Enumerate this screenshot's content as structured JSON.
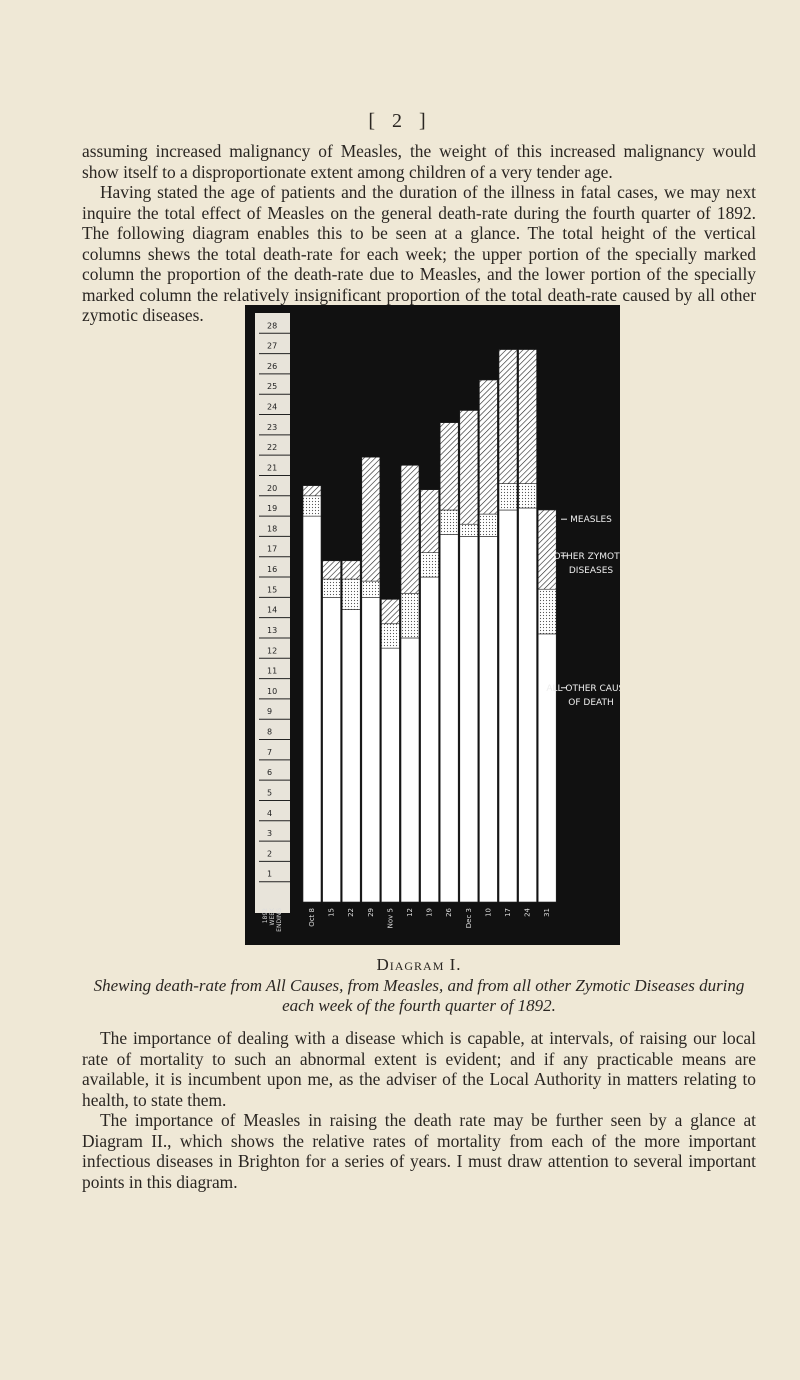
{
  "page_number": "[ 2 ]",
  "paragraphs_before": [
    "assuming increased malignancy of Measles, the weight of this increased malignancy would show itself to a disproportionate extent among children of a very tender age.",
    "Having stated the age of patients and the duration of the illness in fatal cases, we may next inquire the total effect of Measles on the general death-rate during the fourth quarter of 1892. The following diagram enables this to be seen at a glance. The total height of the vertical columns shews the total death-rate for each week; the upper portion of the specially marked column the proportion of the death-rate due to Measles, and the lower portion of the specially marked column the relatively insignificant proportion of the total death-rate caused by all other zymotic diseases."
  ],
  "chart_data": {
    "type": "stacked-bar",
    "x_title": [
      "1892",
      "WEEK",
      "ENDING"
    ],
    "categories": [
      "Oct 8",
      "15",
      "22",
      "29",
      "Nov 5",
      "12",
      "19",
      "26",
      "Dec 3",
      "10",
      "17",
      "24",
      "31"
    ],
    "series": [
      {
        "name": "MEASLES",
        "color": "#ffffff",
        "pattern": "hatch",
        "values": [
          0.5,
          0.9,
          0.9,
          6.1,
          1.2,
          6.3,
          3.1,
          4.3,
          5.6,
          6.6,
          6.6,
          6.6,
          3.9
        ]
      },
      {
        "name": "OTHER ZYMOTIC DISEASES",
        "color": "#ffffff",
        "pattern": "dots",
        "values": [
          1.0,
          0.9,
          1.5,
          0.8,
          1.2,
          2.2,
          1.2,
          1.2,
          0.6,
          1.1,
          1.3,
          1.2,
          2.2
        ]
      },
      {
        "name": "ALL OTHER CAUSES OF DEATH",
        "color": "#ffffff",
        "pattern": "none",
        "values": [
          19.0,
          15.0,
          14.4,
          15.0,
          12.5,
          13.0,
          16.0,
          18.1,
          18.0,
          18.0,
          19.3,
          19.4,
          13.2
        ]
      }
    ],
    "ylim": [
      0,
      29
    ],
    "yticks": [
      1,
      2,
      3,
      4,
      5,
      6,
      7,
      8,
      9,
      10,
      11,
      12,
      13,
      14,
      15,
      16,
      17,
      18,
      19,
      20,
      21,
      22,
      23,
      24,
      25,
      26,
      27,
      28
    ],
    "grid": false
  },
  "caption": {
    "label": "Diagram I.",
    "text": "Shewing death-rate from All Causes, from Measles, and from all other Zymotic Diseases during each week of the fourth quarter of 1892."
  },
  "paragraphs_after": [
    "The importance of dealing with a disease which is capable, at intervals, of raising our local rate of mortality to such an abnormal extent is evident; and if any practicable means are available, it is incumbent upon me, as the adviser of the Local Authority in matters relating to health, to state them.",
    "The importance of Measles in raising the death rate may be further seen by a glance at Diagram II., which shows the relative rates of mortality from each of the more important infectious diseases in Brighton for a series of years. I must draw attention to several important points in this diagram."
  ]
}
